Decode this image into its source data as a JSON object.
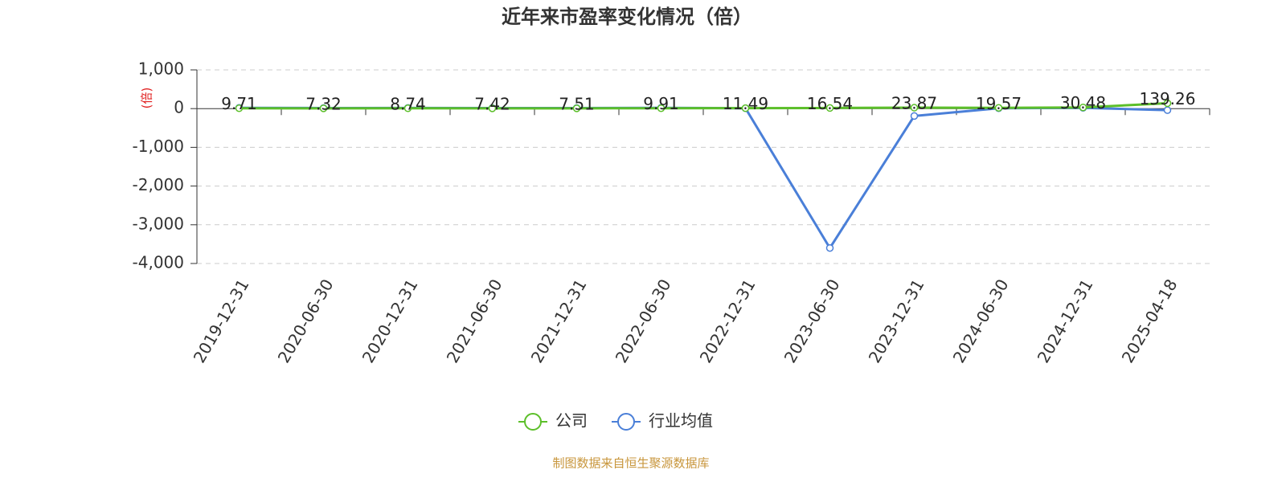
{
  "chart_data": {
    "type": "line",
    "title": "近年来市盈率变化情况（倍）",
    "y_label": "(倍)",
    "categories": [
      "2019-12-31",
      "2020-06-30",
      "2020-12-31",
      "2021-06-30",
      "2021-12-31",
      "2022-06-30",
      "2022-12-31",
      "2023-06-30",
      "2023-12-31",
      "2024-06-30",
      "2024-12-31",
      "2025-04-18"
    ],
    "series": [
      {
        "name": "公司",
        "color": "#5cbf2a",
        "values": [
          9.71,
          7.32,
          8.74,
          7.42,
          7.51,
          9.91,
          11.49,
          16.54,
          23.87,
          19.57,
          30.48,
          139.26
        ]
      },
      {
        "name": "行业均值",
        "color": "#4a7fd8",
        "values": [
          20,
          15,
          18,
          14,
          15,
          20,
          10,
          -3600,
          -190,
          10,
          20,
          -40
        ]
      }
    ],
    "ylim": [
      -4000,
      1000
    ],
    "yticks": [
      {
        "value": 1000,
        "label": "1,000"
      },
      0,
      {
        "value": -1000,
        "label": "-1,000"
      },
      {
        "value": -2000,
        "label": "-2,000"
      },
      {
        "value": -3000,
        "label": "-3,000"
      },
      {
        "value": -4000,
        "label": "-4,000"
      }
    ],
    "grid": true,
    "source": "制图数据来自恒生聚源数据库"
  }
}
